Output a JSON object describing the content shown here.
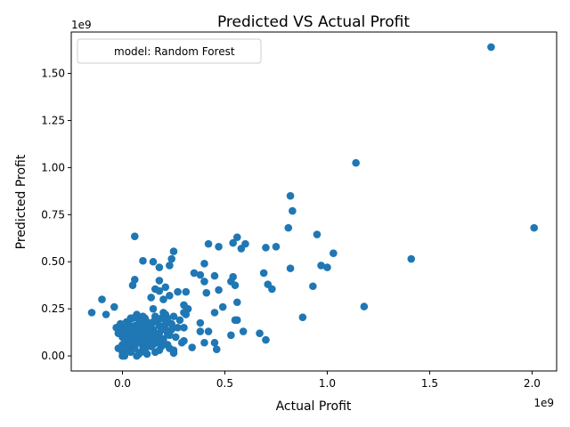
{
  "chart_data": {
    "type": "scatter",
    "title": "Predicted VS Actual Profit",
    "xlabel": "Actual Profit",
    "ylabel": "Predicted Profit",
    "x_offset_label": "1e9",
    "y_offset_label": "1e9",
    "xlim": [
      -0.25,
      2.12
    ],
    "ylim": [
      -0.08,
      1.72
    ],
    "x_ticks": [
      0.0,
      0.5,
      1.0,
      1.5,
      2.0
    ],
    "x_tick_labels": [
      "0.0",
      "0.5",
      "1.0",
      "1.5",
      "2.0"
    ],
    "y_ticks": [
      0.0,
      0.25,
      0.5,
      0.75,
      1.0,
      1.25,
      1.5
    ],
    "y_tick_labels": [
      "0.00",
      "0.25",
      "0.50",
      "0.75",
      "1.00",
      "1.25",
      "1.50"
    ],
    "grid": false,
    "legend": {
      "placement": "upper-left",
      "entry": "model: Random Forest"
    },
    "color": "#1f77b4",
    "series": [
      {
        "values_note": "",
        "points": [
          [
            1.8,
            1.64
          ],
          [
            1.14,
            1.025
          ],
          [
            2.01,
            0.68
          ],
          [
            1.41,
            0.515
          ],
          [
            1.18,
            0.262
          ],
          [
            0.82,
            0.85
          ],
          [
            0.83,
            0.77
          ],
          [
            0.81,
            0.68
          ],
          [
            0.95,
            0.645
          ],
          [
            1.03,
            0.545
          ],
          [
            0.97,
            0.48
          ],
          [
            1.0,
            0.47
          ],
          [
            0.82,
            0.465
          ],
          [
            0.93,
            0.37
          ],
          [
            0.88,
            0.205
          ],
          [
            0.75,
            0.58
          ],
          [
            0.7,
            0.575
          ],
          [
            0.69,
            0.44
          ],
          [
            0.71,
            0.38
          ],
          [
            0.73,
            0.355
          ],
          [
            0.7,
            0.085
          ],
          [
            0.67,
            0.12
          ],
          [
            0.06,
            0.635
          ],
          [
            0.56,
            0.63
          ],
          [
            0.54,
            0.6
          ],
          [
            0.6,
            0.595
          ],
          [
            0.42,
            0.595
          ],
          [
            0.47,
            0.58
          ],
          [
            0.58,
            0.57
          ],
          [
            0.25,
            0.555
          ],
          [
            0.24,
            0.515
          ],
          [
            0.1,
            0.505
          ],
          [
            0.15,
            0.5
          ],
          [
            0.4,
            0.49
          ],
          [
            0.23,
            0.48
          ],
          [
            0.18,
            0.47
          ],
          [
            0.35,
            0.44
          ],
          [
            0.38,
            0.43
          ],
          [
            0.45,
            0.425
          ],
          [
            0.54,
            0.42
          ],
          [
            0.06,
            0.405
          ],
          [
            0.18,
            0.4
          ],
          [
            0.53,
            0.395
          ],
          [
            0.4,
            0.395
          ],
          [
            0.55,
            0.375
          ],
          [
            0.05,
            0.375
          ],
          [
            0.21,
            0.365
          ],
          [
            0.16,
            0.355
          ],
          [
            0.47,
            0.35
          ],
          [
            0.18,
            0.345
          ],
          [
            0.31,
            0.34
          ],
          [
            0.27,
            0.34
          ],
          [
            0.41,
            0.335
          ],
          [
            0.23,
            0.32
          ],
          [
            0.14,
            0.31
          ],
          [
            0.2,
            0.3
          ],
          [
            -0.1,
            0.3
          ],
          [
            0.56,
            0.285
          ],
          [
            0.3,
            0.27
          ],
          [
            0.49,
            0.26
          ],
          [
            -0.04,
            0.26
          ],
          [
            0.15,
            0.25
          ],
          [
            0.32,
            0.25
          ],
          [
            -0.15,
            0.23
          ],
          [
            -0.08,
            0.22
          ],
          [
            0.45,
            0.23
          ],
          [
            0.31,
            0.22
          ],
          [
            0.55,
            0.19
          ],
          [
            0.56,
            0.19
          ],
          [
            0.38,
            0.175
          ],
          [
            0.3,
            0.15
          ],
          [
            0.59,
            0.13
          ],
          [
            0.42,
            0.13
          ],
          [
            0.38,
            0.13
          ],
          [
            0.53,
            0.11
          ],
          [
            0.25,
            0.03
          ],
          [
            0.25,
            0.015
          ],
          [
            0.4,
            0.07
          ],
          [
            0.45,
            0.07
          ],
          [
            0.3,
            0.08
          ],
          [
            0.34,
            0.045
          ],
          [
            0.46,
            0.035
          ],
          [
            -0.03,
            0.15
          ],
          [
            -0.02,
            0.12
          ],
          [
            0.0,
            0.1
          ],
          [
            0.0,
            0.06
          ],
          [
            0.0,
            0.02
          ],
          [
            0.01,
            0.0
          ],
          [
            0.02,
            0.15
          ],
          [
            0.03,
            0.08
          ],
          [
            0.03,
            0.03
          ],
          [
            0.04,
            0.12
          ],
          [
            0.05,
            0.2
          ],
          [
            0.05,
            0.05
          ],
          [
            0.06,
            0.16
          ],
          [
            0.06,
            0.1
          ],
          [
            0.07,
            0.0
          ],
          [
            0.07,
            0.22
          ],
          [
            0.08,
            0.13
          ],
          [
            0.08,
            0.07
          ],
          [
            0.09,
            0.18
          ],
          [
            0.09,
            0.02
          ],
          [
            0.1,
            0.11
          ],
          [
            0.1,
            0.05
          ],
          [
            0.11,
            0.15
          ],
          [
            0.11,
            0.2
          ],
          [
            0.12,
            0.08
          ],
          [
            0.12,
            0.01
          ],
          [
            0.13,
            0.12
          ],
          [
            0.13,
            0.17
          ],
          [
            0.14,
            0.05
          ],
          [
            0.15,
            0.1
          ],
          [
            0.15,
            0.14
          ],
          [
            0.16,
            0.02
          ],
          [
            0.16,
            0.21
          ],
          [
            0.17,
            0.07
          ],
          [
            0.18,
            0.12
          ],
          [
            0.18,
            0.16
          ],
          [
            0.19,
            0.05
          ],
          [
            0.2,
            0.09
          ],
          [
            0.2,
            0.23
          ],
          [
            0.21,
            0.14
          ],
          [
            0.22,
            0.2
          ],
          [
            0.22,
            0.06
          ],
          [
            0.23,
            0.11
          ],
          [
            0.24,
            0.17
          ],
          [
            0.25,
            0.21
          ],
          [
            0.26,
            0.1
          ],
          [
            0.27,
            0.15
          ],
          [
            0.28,
            0.19
          ],
          [
            0.29,
            0.07
          ],
          [
            0.3,
            0.23
          ],
          [
            0.0,
            0.14
          ],
          [
            0.01,
            0.09
          ],
          [
            0.02,
            0.05
          ],
          [
            0.03,
            0.17
          ],
          [
            0.04,
            0.02
          ],
          [
            0.05,
            0.11
          ],
          [
            0.06,
            0.04
          ],
          [
            0.07,
            0.14
          ],
          [
            0.08,
            0.19
          ],
          [
            0.09,
            0.1
          ],
          [
            0.1,
            0.16
          ],
          [
            0.11,
            0.03
          ],
          [
            0.12,
            0.12
          ],
          [
            0.13,
            0.06
          ],
          [
            0.14,
            0.15
          ],
          [
            0.15,
            0.06
          ],
          [
            0.16,
            0.12
          ],
          [
            0.17,
            0.18
          ],
          [
            0.18,
            0.03
          ],
          [
            0.19,
            0.14
          ],
          [
            0.2,
            0.06
          ],
          [
            0.21,
            0.22
          ],
          [
            0.22,
            0.12
          ],
          [
            0.23,
            0.04
          ],
          [
            0.24,
            0.14
          ],
          [
            -0.02,
            0.04
          ],
          [
            -0.01,
            0.17
          ],
          [
            0.0,
            0.0
          ],
          [
            0.02,
            0.11
          ],
          [
            0.04,
            0.07
          ],
          [
            0.06,
            0.13
          ],
          [
            0.08,
            0.01
          ],
          [
            0.1,
            0.08
          ],
          [
            0.12,
            0.18
          ],
          [
            0.14,
            0.09
          ],
          [
            0.03,
            0.12
          ],
          [
            0.05,
            0.15
          ],
          [
            0.07,
            0.09
          ],
          [
            0.09,
            0.13
          ],
          [
            0.11,
            0.1
          ],
          [
            0.13,
            0.14
          ],
          [
            0.15,
            0.18
          ],
          [
            0.17,
            0.1
          ],
          [
            0.19,
            0.2
          ],
          [
            0.21,
            0.17
          ],
          [
            0.02,
            0.18
          ],
          [
            0.04,
            0.2
          ],
          [
            0.06,
            0.07
          ],
          [
            0.08,
            0.16
          ],
          [
            0.1,
            0.21
          ]
        ]
      }
    ]
  }
}
